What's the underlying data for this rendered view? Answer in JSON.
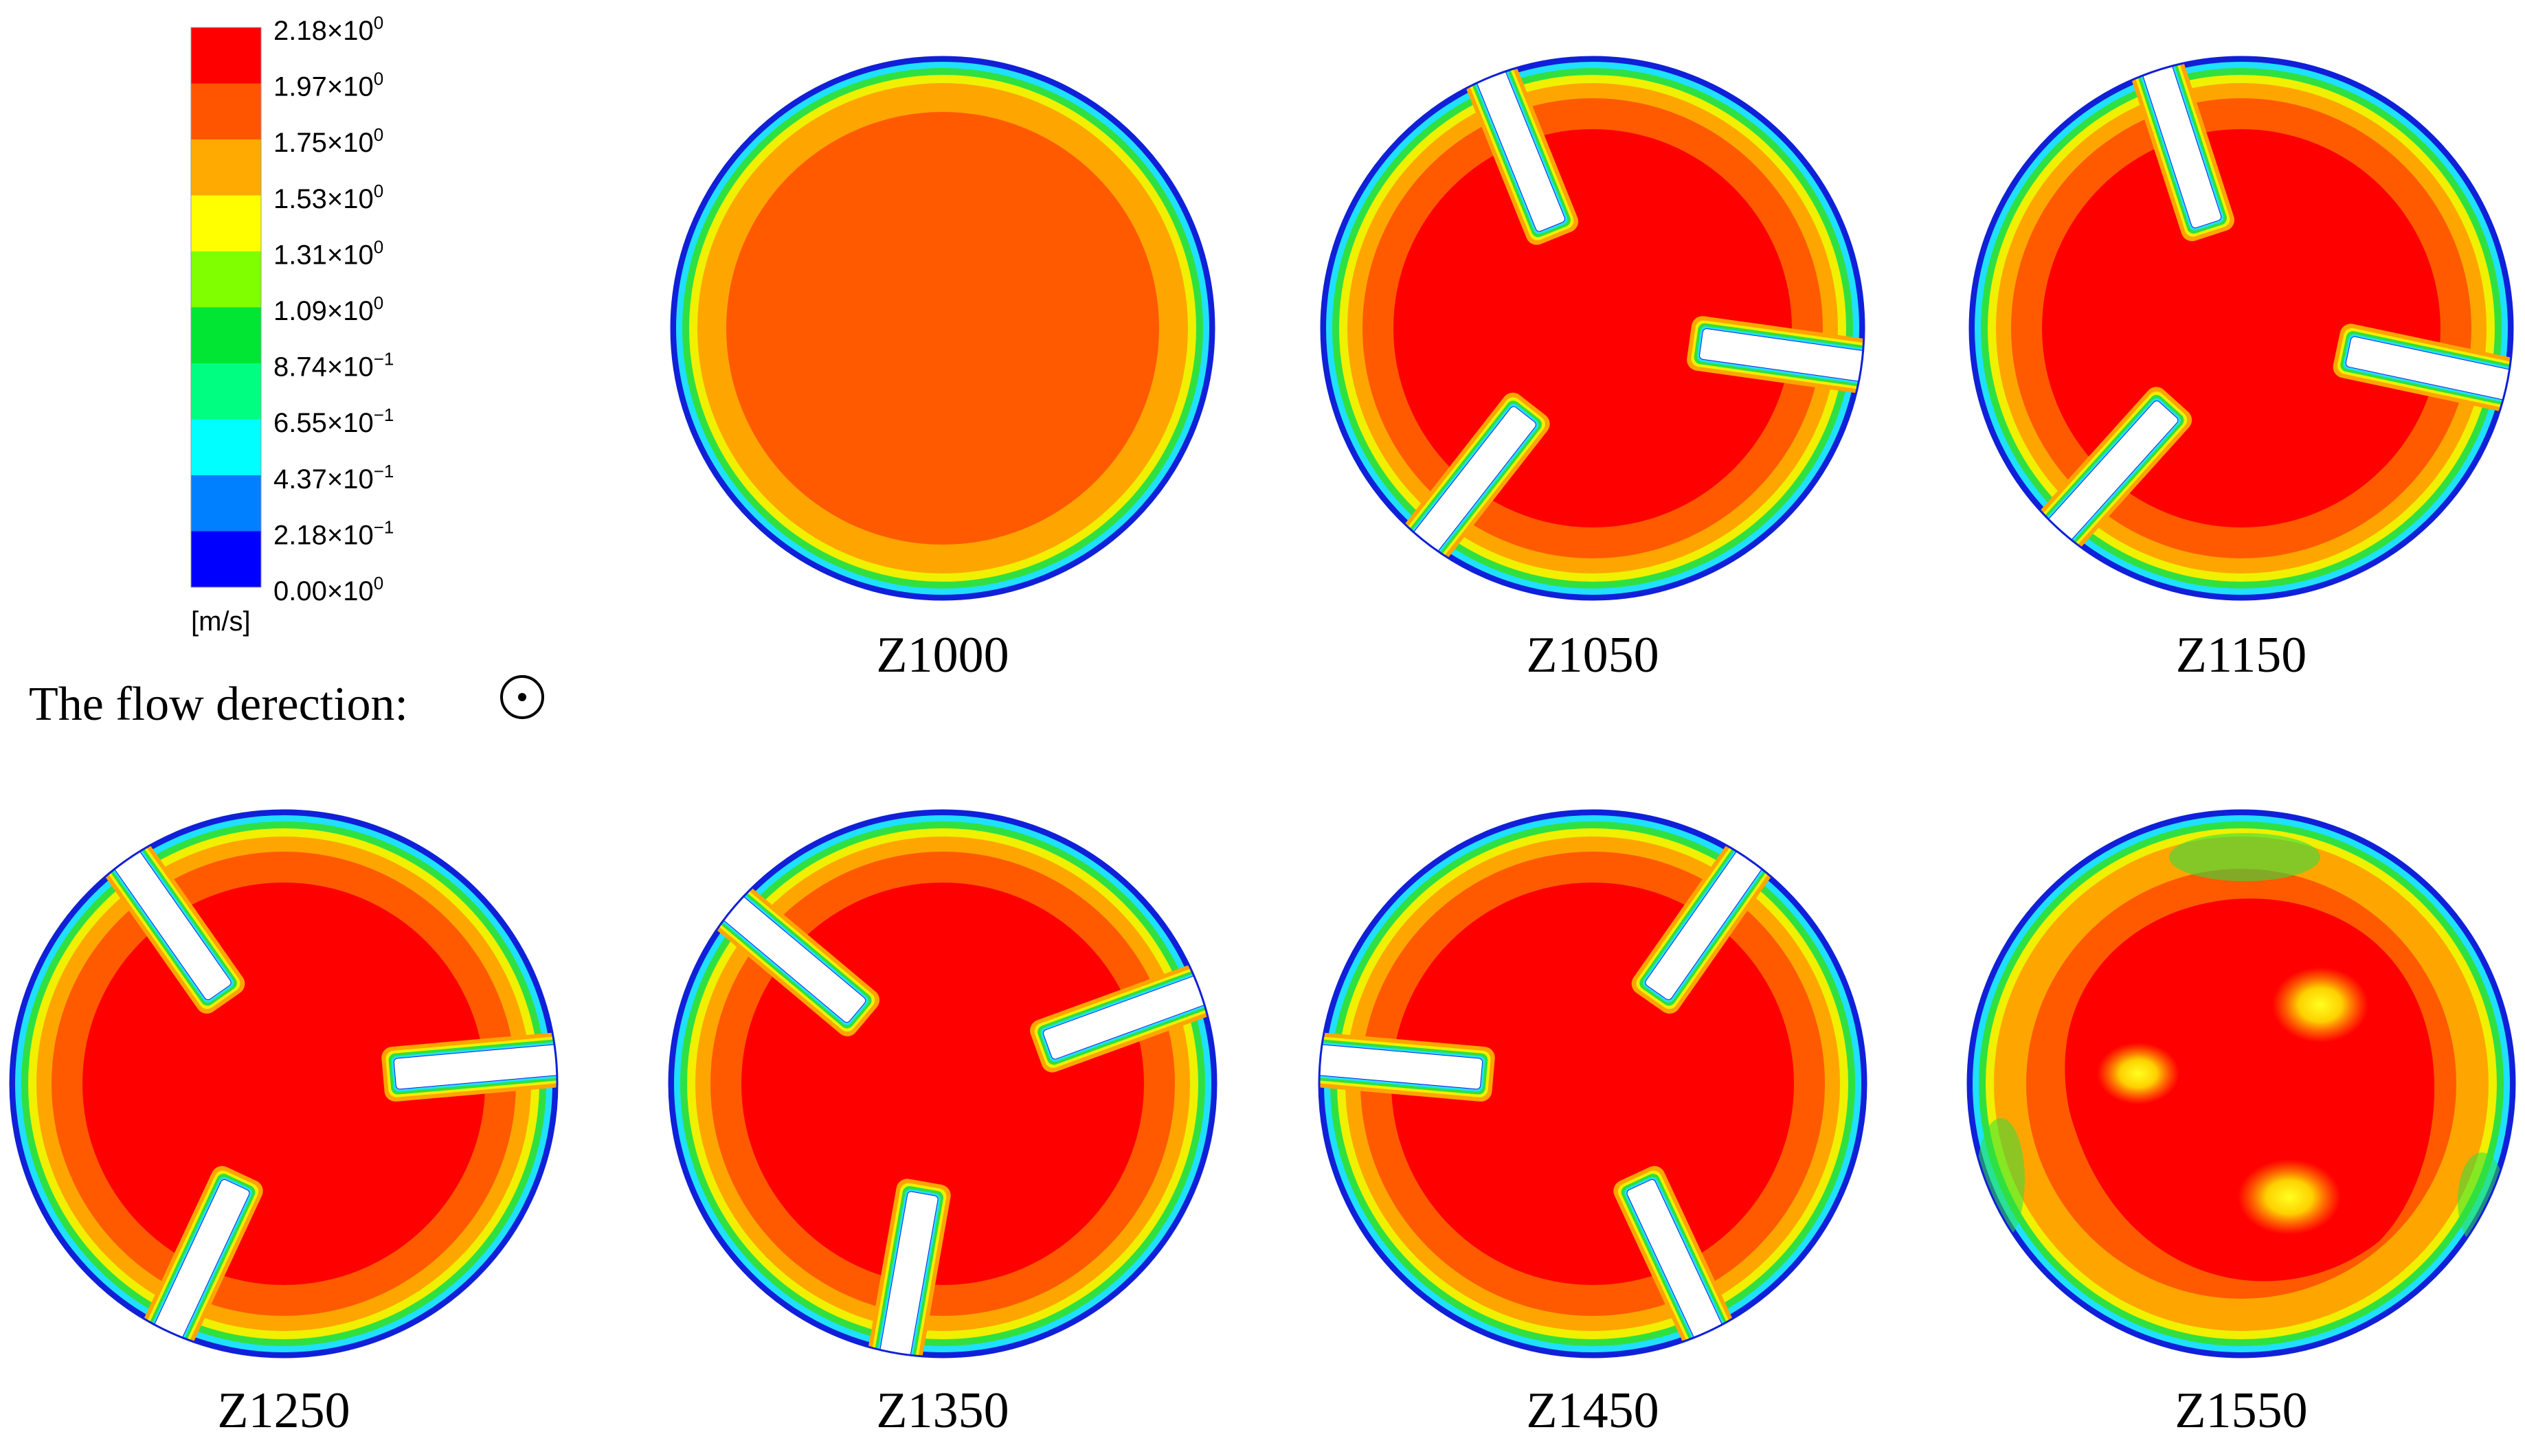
{
  "legend": {
    "unit": "[m/s]",
    "levels": [
      {
        "mantissa": "2.18×10",
        "exp": "0",
        "color": "#ff0000"
      },
      {
        "mantissa": "1.97×10",
        "exp": "0",
        "color": "#ff5500"
      },
      {
        "mantissa": "1.75×10",
        "exp": "0",
        "color": "#ffaa00"
      },
      {
        "mantissa": "1.53×10",
        "exp": "0",
        "color": "#ffff00"
      },
      {
        "mantissa": "1.31×10",
        "exp": "0",
        "color": "#7fff00"
      },
      {
        "mantissa": "1.09×10",
        "exp": "0",
        "color": "#00e633"
      },
      {
        "mantissa": "8.74×10",
        "exp": "−1",
        "color": "#00ff80"
      },
      {
        "mantissa": "6.55×10",
        "exp": "−1",
        "color": "#00ffff"
      },
      {
        "mantissa": "4.37×10",
        "exp": "−1",
        "color": "#0080ff"
      },
      {
        "mantissa": "2.18×10",
        "exp": "−1",
        "color": "#0000ff"
      },
      {
        "mantissa": "0.00×10",
        "exp": "0",
        "color": null
      }
    ]
  },
  "flow_label": "The flow derection:",
  "contour_colors": {
    "edge_blue": "#1020d8",
    "cyan": "#20e0ff",
    "green": "#30e040",
    "yellow": "#f0f000",
    "orange": "#ffa500",
    "dark_orange": "#ff5a00",
    "red": "#ff0000"
  },
  "sections": [
    {
      "label": "Z1000",
      "slots": []
    },
    {
      "label": "Z1050",
      "slots": [
        -112,
        8,
        128
      ]
    },
    {
      "label": "Z1150",
      "slots": [
        -108,
        12,
        132
      ]
    },
    {
      "label": "Z1250",
      "slots": [
        -125,
        -5,
        115
      ]
    },
    {
      "label": "Z1350",
      "slots": [
        -140,
        -20,
        100
      ]
    },
    {
      "label": "Z1450",
      "slots": [
        -175,
        -55,
        65
      ]
    },
    {
      "label": "Z1550",
      "slots": []
    }
  ]
}
